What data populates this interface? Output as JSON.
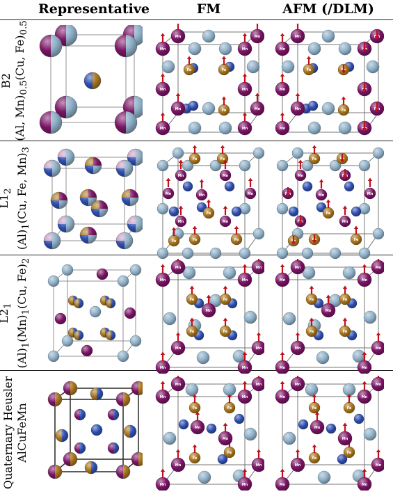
{
  "headers": {
    "representative": "Representative",
    "fm": "FM",
    "afm": "AFM (/DLM)"
  },
  "rows": [
    {
      "label": "B2",
      "formula": "(Al, Mn)0.5(Cu, Fe)0.5"
    },
    {
      "label": "L12",
      "formula": "(Al)1(Cu, Fe, Mn)3"
    },
    {
      "label": "L21",
      "formula": "(Al)1(Mn)1(Cu, Fe)2"
    },
    {
      "label": "Quaternary Heusler",
      "formula": "AlCuFeMn"
    }
  ],
  "colors": {
    "al": "#8fb0c8",
    "mn": "#7a1464",
    "fe": "#a8751c",
    "cu": "#2f4fb0",
    "spin": "#c0101a",
    "mixed_light": "#c49ac0",
    "frame": "#555555"
  },
  "atom_labels": {
    "mn": "Mn",
    "fe": "Fe"
  }
}
